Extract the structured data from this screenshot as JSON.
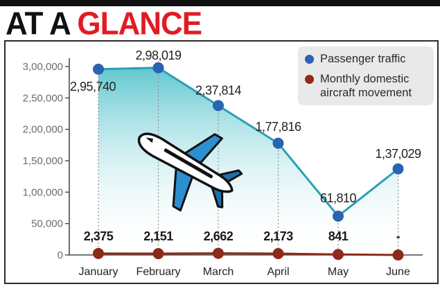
{
  "header": {
    "title_part1": "AT A ",
    "title_part2": "GLANCE"
  },
  "colors": {
    "accent": "#e21b23",
    "passenger": "#2b63b0",
    "passenger_line": "#2a9fb3",
    "aircraft": "#8e2a1a",
    "area_top": "#2bb5bf",
    "legend_bg": "#e9e9ea"
  },
  "chart_data": {
    "type": "line",
    "categories": [
      "January",
      "February",
      "March",
      "April",
      "May",
      "June"
    ],
    "ylim": [
      0,
      300000
    ],
    "yticks": [
      0,
      50000,
      100000,
      150000,
      200000,
      250000,
      300000
    ],
    "ytick_labels": [
      "0",
      "50,000",
      "1,00,000",
      "1,50,000",
      "2,00,000",
      "2,50,000",
      "3,00,000"
    ],
    "grid": false,
    "legend_position": "top-right",
    "series": [
      {
        "name": "Passenger traffic",
        "values": [
          295740,
          298019,
          237814,
          177816,
          61810,
          137029
        ],
        "labels": [
          "2,95,740",
          "2,98,019",
          "2,37,814",
          "1,77,816",
          "61,810",
          "1,37,029"
        ]
      },
      {
        "name": "Monthly domestic aircraft movement",
        "values": [
          2375,
          2151,
          2662,
          2173,
          841,
          null
        ],
        "labels": [
          "2,375",
          "2,151",
          "2,662",
          "2,173",
          "841",
          "-"
        ]
      }
    ]
  },
  "legend": {
    "passenger_label": "Passenger traffic",
    "aircraft_line1": "Monthly domestic",
    "aircraft_line2": "aircraft movement"
  },
  "icons": {
    "illustration": "airplane-icon"
  }
}
